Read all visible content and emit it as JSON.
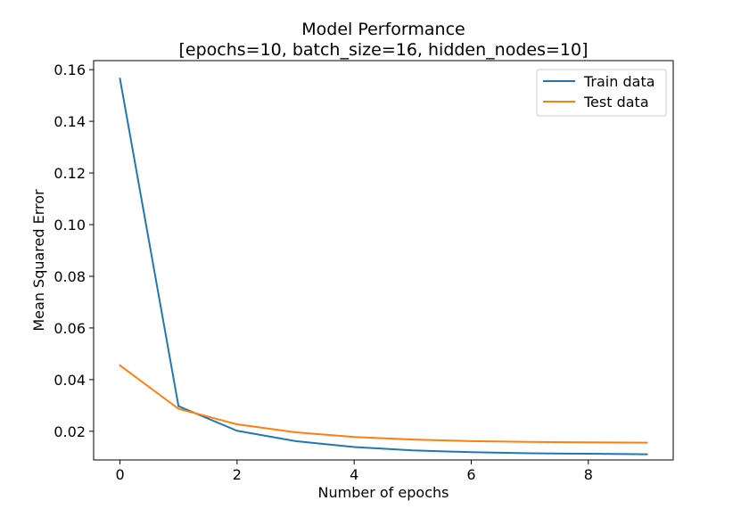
{
  "chart_data": {
    "type": "line",
    "title": "Model Performance",
    "subtitle": "[epochs=10, batch_size=16, hidden_nodes=10]",
    "xlabel": "Number of epochs",
    "ylabel": "Mean Squared Error",
    "xlim": [
      -0.45,
      9.45
    ],
    "ylim": [
      0.0089,
      0.1635
    ],
    "xticks": [
      0,
      2,
      4,
      6,
      8
    ],
    "xtick_labels": [
      "0",
      "2",
      "4",
      "6",
      "8"
    ],
    "yticks": [
      0.02,
      0.04,
      0.06,
      0.08,
      0.1,
      0.12,
      0.14,
      0.16
    ],
    "ytick_labels": [
      "0.02",
      "0.04",
      "0.06",
      "0.08",
      "0.10",
      "0.12",
      "0.14",
      "0.16"
    ],
    "grid": false,
    "legend_position": "top-right",
    "x": [
      0,
      1,
      2,
      3,
      4,
      5,
      6,
      7,
      8,
      9
    ],
    "series": [
      {
        "name": "Train data",
        "color": "#1f77b4",
        "values": [
          0.1565,
          0.0297,
          0.0202,
          0.0162,
          0.0139,
          0.0126,
          0.0119,
          0.0115,
          0.0113,
          0.0111
        ]
      },
      {
        "name": "Test data",
        "color": "#ff7f0e",
        "values": [
          0.0455,
          0.0287,
          0.0227,
          0.0196,
          0.0178,
          0.0168,
          0.0162,
          0.0159,
          0.0157,
          0.0156
        ]
      }
    ]
  }
}
